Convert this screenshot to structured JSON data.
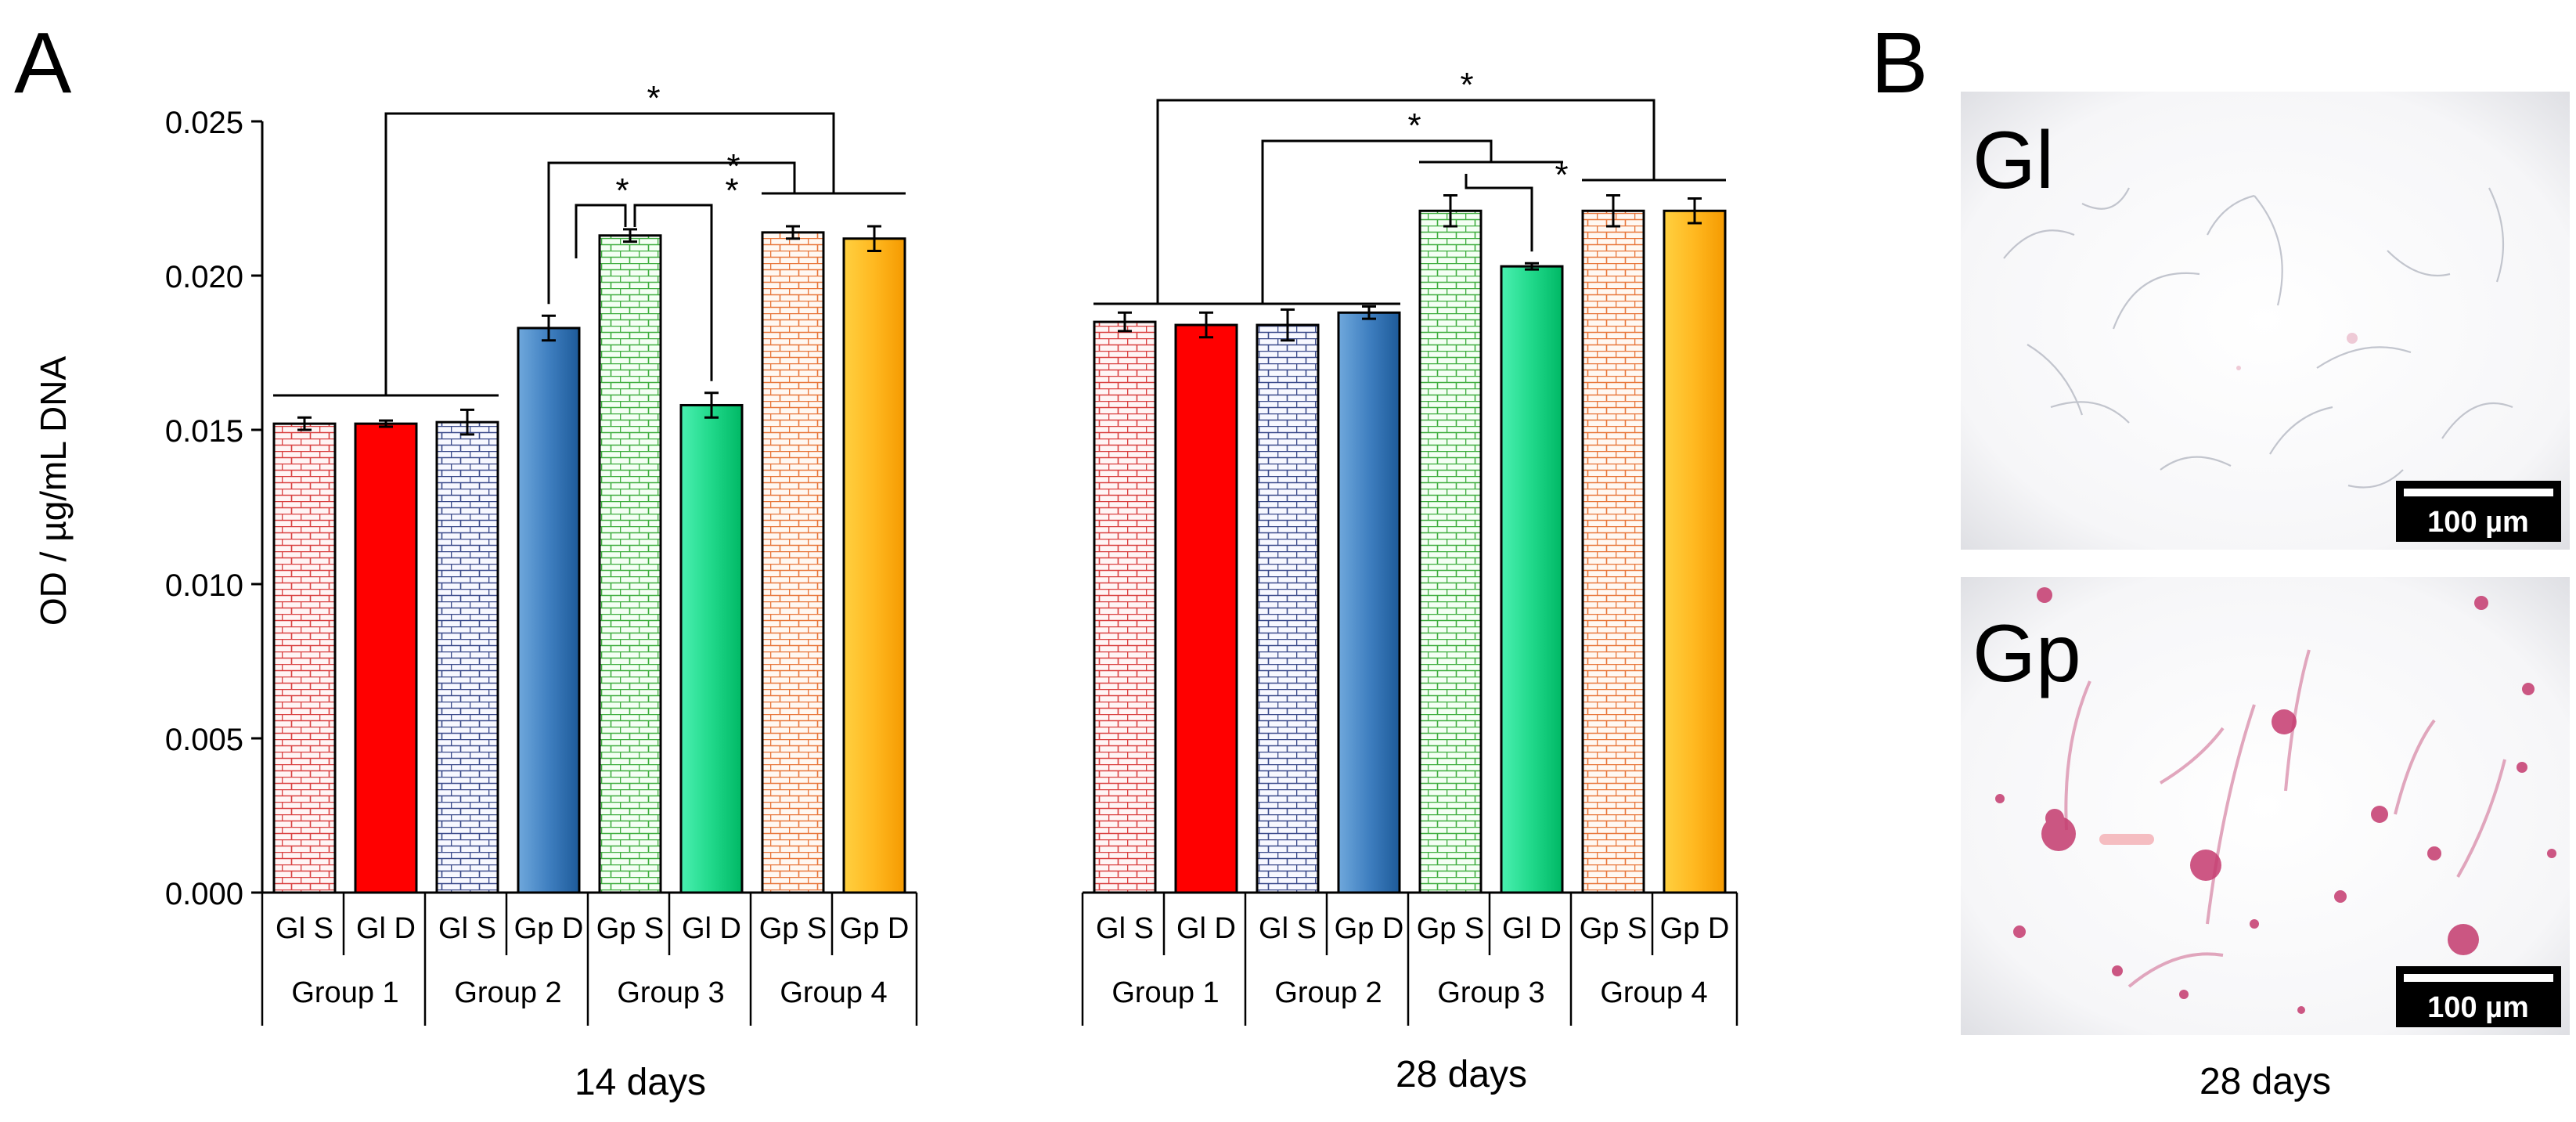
{
  "figure": {
    "panel_a_label": "A",
    "panel_b_label": "B"
  },
  "chart_data": [
    {
      "type": "bar",
      "title": "14 days",
      "ylabel": "OD / µg/mL DNA",
      "ylim": [
        0,
        0.025
      ],
      "yticks": [
        "0.000",
        "0.005",
        "0.010",
        "0.015",
        "0.020",
        "0.025"
      ],
      "groups": [
        "Group 1",
        "Group 2",
        "Group 3",
        "Group 4"
      ],
      "categories": [
        "Gl S",
        "Gl D",
        "Gl S",
        "Gp D",
        "Gp S",
        "Gl D",
        "Gp S",
        "Gp D"
      ],
      "values": [
        0.0152,
        0.0152,
        0.01525,
        0.0183,
        0.0213,
        0.0158,
        0.0214,
        0.0212
      ],
      "errors": [
        0.0002,
        0.0001,
        0.0004,
        0.0004,
        0.0002,
        0.0004,
        0.0002,
        0.0004
      ],
      "bar_styles": [
        "brick-red",
        "solid-red",
        "brick-navy",
        "solid-blue",
        "brick-green",
        "solid-green",
        "brick-orange",
        "solid-orange"
      ],
      "significance_marker": "*"
    },
    {
      "type": "bar",
      "title": "28 days",
      "ylim": [
        0,
        0.025
      ],
      "groups": [
        "Group 1",
        "Group 2",
        "Group 3",
        "Group 4"
      ],
      "categories": [
        "Gl S",
        "Gl D",
        "Gl S",
        "Gp D",
        "Gp S",
        "Gl D",
        "Gp S",
        "Gp D"
      ],
      "values": [
        0.0185,
        0.0184,
        0.0184,
        0.0188,
        0.0221,
        0.0203,
        0.0221,
        0.0221
      ],
      "errors": [
        0.0003,
        0.0004,
        0.0005,
        0.0002,
        0.0005,
        0.0001,
        0.0005,
        0.0004
      ],
      "bar_styles": [
        "brick-red",
        "solid-red",
        "brick-navy",
        "solid-blue",
        "brick-green",
        "solid-green",
        "brick-orange",
        "solid-orange"
      ],
      "significance_marker": "*"
    }
  ],
  "micrographs": {
    "caption": "28 days",
    "top_label": "Gl",
    "bottom_label": "Gp",
    "scale_bar_text": "100 µm"
  },
  "colors": {
    "red": "#ff0000",
    "blue_dark": "#1d5a99",
    "blue_light": "#6fa8dc",
    "green_dark": "#00c46c",
    "green_light": "#4af0b0",
    "orange_dark": "#f5a000",
    "orange_light": "#ffcc33",
    "brick_red": "#d94040",
    "brick_navy": "#3a4a8a",
    "brick_green": "#3fae3f",
    "brick_orange": "#e8763a"
  }
}
